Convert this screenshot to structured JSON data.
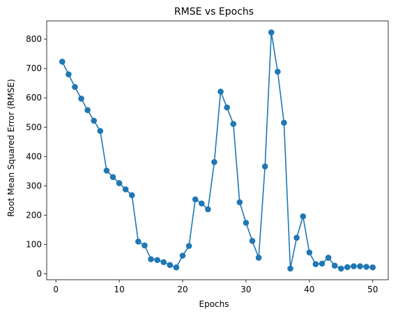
{
  "chart_data": {
    "type": "line",
    "title": "RMSE vs Epochs",
    "xlabel": "Epochs",
    "ylabel": "Root Mean Squared Error (RMSE)",
    "xlim": [
      -1.45,
      52.45
    ],
    "ylim": [
      -20,
      862
    ],
    "xticks": [
      0,
      10,
      20,
      30,
      40,
      50
    ],
    "yticks": [
      0,
      100,
      200,
      300,
      400,
      500,
      600,
      700,
      800
    ],
    "grid": false,
    "marker": "circle",
    "colors": {
      "series": "#1f77b4",
      "axes": "#000000",
      "background": "#ffffff"
    },
    "series": [
      {
        "x": [
          1,
          2,
          3,
          4,
          5,
          6,
          7,
          8,
          9,
          10,
          11,
          12,
          13,
          14,
          15,
          16,
          17,
          18,
          19,
          20,
          21,
          22,
          23,
          24,
          25,
          26,
          27,
          28,
          29,
          30,
          31,
          32,
          33,
          34,
          35,
          36,
          37,
          38,
          39,
          40,
          41,
          42,
          43,
          44,
          45,
          46,
          47,
          48,
          49,
          50
        ],
        "values": [
          723,
          680,
          637,
          597,
          558,
          522,
          487,
          352,
          330,
          309,
          288,
          268,
          110,
          97,
          50,
          47,
          40,
          30,
          22,
          62,
          95,
          254,
          240,
          220,
          381,
          621,
          567,
          511,
          244,
          174,
          112,
          55,
          366,
          823,
          689,
          515,
          18,
          123,
          196,
          73,
          33,
          35,
          55,
          28,
          18,
          23,
          26,
          26,
          24,
          22
        ]
      }
    ]
  }
}
